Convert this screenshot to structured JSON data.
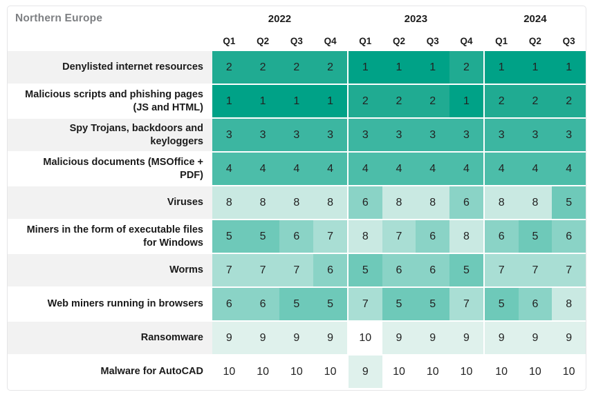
{
  "title": "Northern Europe",
  "header": {
    "years": [
      {
        "label": "2022",
        "quarters": [
          "Q1",
          "Q2",
          "Q3",
          "Q4"
        ]
      },
      {
        "label": "2023",
        "quarters": [
          "Q1",
          "Q2",
          "Q3",
          "Q4"
        ]
      },
      {
        "label": "2024",
        "quarters": [
          "Q1",
          "Q2",
          "Q3"
        ]
      }
    ]
  },
  "chart_data": {
    "type": "heatmap",
    "title": "Northern Europe",
    "columns": [
      "2022 Q1",
      "2022 Q2",
      "2022 Q3",
      "2022 Q4",
      "2023 Q1",
      "2023 Q2",
      "2023 Q3",
      "2023 Q4",
      "2024 Q1",
      "2024 Q2",
      "2024 Q3"
    ],
    "rows": [
      {
        "label": "Denylisted internet resources",
        "values": [
          2,
          2,
          2,
          2,
          1,
          1,
          1,
          2,
          1,
          1,
          1
        ]
      },
      {
        "label": "Malicious scripts and phishing pages (JS and HTML)",
        "values": [
          1,
          1,
          1,
          1,
          2,
          2,
          2,
          1,
          2,
          2,
          2
        ]
      },
      {
        "label": "Spy Trojans, backdoors and keyloggers",
        "values": [
          3,
          3,
          3,
          3,
          3,
          3,
          3,
          3,
          3,
          3,
          3
        ]
      },
      {
        "label": "Malicious documents (MSOffice + PDF)",
        "values": [
          4,
          4,
          4,
          4,
          4,
          4,
          4,
          4,
          4,
          4,
          4
        ]
      },
      {
        "label": "Viruses",
        "values": [
          8,
          8,
          8,
          8,
          6,
          8,
          8,
          6,
          8,
          8,
          5
        ]
      },
      {
        "label": "Miners in the form of executable files for Windows",
        "values": [
          5,
          5,
          6,
          7,
          8,
          7,
          6,
          8,
          6,
          5,
          6
        ]
      },
      {
        "label": "Worms",
        "values": [
          7,
          7,
          7,
          6,
          5,
          6,
          6,
          5,
          7,
          7,
          7
        ]
      },
      {
        "label": "Web miners running in browsers",
        "values": [
          6,
          6,
          5,
          5,
          7,
          5,
          5,
          7,
          5,
          6,
          8
        ]
      },
      {
        "label": "Ransomware",
        "values": [
          9,
          9,
          9,
          9,
          10,
          9,
          9,
          9,
          9,
          9,
          9
        ]
      },
      {
        "label": "Malware for AutoCAD",
        "values": [
          10,
          10,
          10,
          10,
          9,
          10,
          10,
          10,
          10,
          10,
          10
        ]
      }
    ],
    "value_range": [
      1,
      10
    ]
  },
  "colors": {
    "rank_scale": {
      "1": "#00a287",
      "2": "#20ab92",
      "3": "#3cb6a1",
      "4": "#4cbda9",
      "5": "#6ec9b9",
      "6": "#8ad3c6",
      "7": "#a9ded4",
      "8": "#c9e9e2",
      "9": "#dff1ec",
      "10": "#ffffff"
    },
    "row_label_alt_bg": "#f2f2f2",
    "row_label_bg": "#ffffff",
    "title_color": "#7e8083",
    "border": "#e5e5e7",
    "text": "#1a1a1a"
  }
}
